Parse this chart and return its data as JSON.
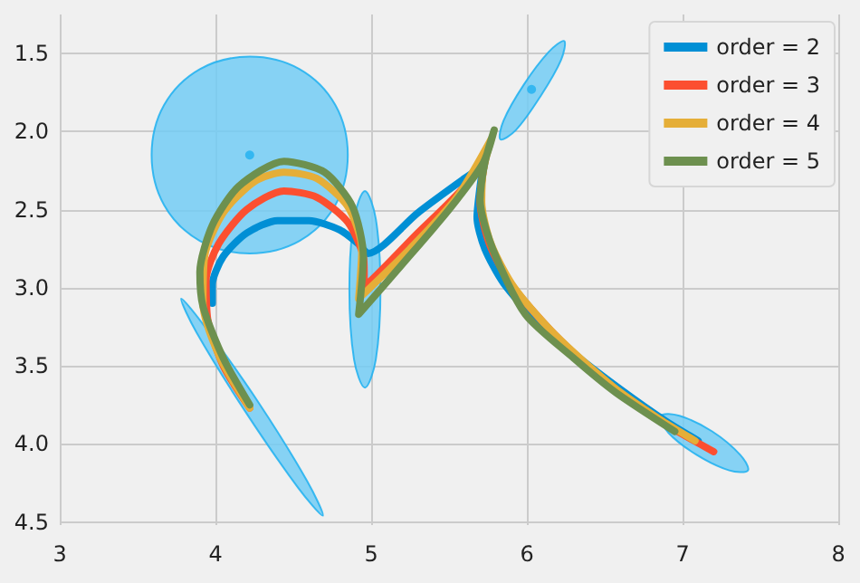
{
  "chart_data": {
    "type": "line",
    "xlim": [
      3,
      8
    ],
    "ylim": [
      4.52,
      1.25
    ],
    "xticks": [
      3,
      4,
      5,
      6,
      7,
      8
    ],
    "yticks": [
      {
        "value": 1.5,
        "label": "1.5"
      },
      {
        "value": 2,
        "label": "2.0"
      },
      {
        "value": 2.5,
        "label": "2.5"
      },
      {
        "value": 3,
        "label": "3.0"
      },
      {
        "value": 3.5,
        "label": "3.5"
      },
      {
        "value": 4,
        "label": "4.0"
      },
      {
        "value": 4.5,
        "label": "4.5"
      }
    ],
    "grid": true,
    "legend": "top right",
    "line_style": "solid",
    "marker": "none",
    "series": [
      {
        "type": "area",
        "color": "#73cdf5",
        "x": [
          4.85,
          4.77,
          4.54,
          4.22,
          3.9,
          3.67,
          3.59,
          3.67,
          3.9,
          4.22,
          4.54,
          4.77
        ],
        "values": [
          2.15,
          2.47,
          2.7,
          2.78,
          2.7,
          2.47,
          2.15,
          1.83,
          1.6,
          1.52,
          1.6,
          1.83
        ]
      },
      {
        "type": "area",
        "color": "#73cdf5",
        "x": [
          4.96,
          5.03,
          5.06,
          5.03,
          4.96,
          4.89,
          4.86,
          4.89
        ],
        "values": [
          3.64,
          3.46,
          3.01,
          2.56,
          2.38,
          2.56,
          3.01,
          3.46
        ]
      },
      {
        "type": "area",
        "color": "#73cdf5",
        "x": [
          4.69,
          4.59,
          4.28,
          3.94,
          3.78,
          3.88,
          4.19,
          4.53
        ],
        "values": [
          4.46,
          4.24,
          3.74,
          3.26,
          3.07,
          3.29,
          3.79,
          4.28
        ]
      },
      {
        "type": "area",
        "color": "#73cdf5",
        "x": [
          6.24,
          6.22,
          6.09,
          5.93,
          5.83,
          5.85,
          5.98,
          6.14
        ],
        "values": [
          1.42,
          1.54,
          1.77,
          1.99,
          2.05,
          1.93,
          1.7,
          1.49
        ]
      },
      {
        "type": "area",
        "color": "#73cdf5",
        "x": [
          7.42,
          7.37,
          7.19,
          6.98,
          6.86,
          6.91,
          7.09,
          7.3
        ],
        "values": [
          4.17,
          4.07,
          3.92,
          3.82,
          3.82,
          3.93,
          4.07,
          4.17
        ]
      },
      {
        "type": "scatter",
        "marker": "circle",
        "color": "#1fb0f0",
        "x": [
          4.22,
          6.03
        ],
        "values": [
          2.15,
          1.73
        ]
      },
      {
        "name": "order = 2",
        "color": "#008fd5",
        "x": [
          3.98,
          3.98,
          4.05,
          4.2,
          4.4,
          4.6,
          4.8,
          4.92,
          4.98,
          5.3,
          5.6,
          5.72,
          5.7,
          5.68,
          5.73,
          5.85,
          6.05,
          6.3,
          6.6,
          6.9,
          7.1
        ],
        "values": [
          3.1,
          2.98,
          2.8,
          2.65,
          2.57,
          2.57,
          2.63,
          2.72,
          2.78,
          2.52,
          2.3,
          2.22,
          2.35,
          2.55,
          2.75,
          2.97,
          3.2,
          3.42,
          3.65,
          3.86,
          3.98
        ]
      },
      {
        "name": "order = 3",
        "color": "#fc4f30",
        "x": [
          4.22,
          4.05,
          3.95,
          3.94,
          4.02,
          4.2,
          4.44,
          4.65,
          4.85,
          4.95,
          4.96,
          5.3,
          5.6,
          5.75,
          5.72,
          5.7,
          5.76,
          5.9,
          6.15,
          6.5,
          6.85,
          7.2
        ],
        "values": [
          3.77,
          3.5,
          3.2,
          2.95,
          2.72,
          2.5,
          2.38,
          2.42,
          2.58,
          2.8,
          2.98,
          2.65,
          2.35,
          2.1,
          2.25,
          2.45,
          2.72,
          2.98,
          3.27,
          3.6,
          3.85,
          4.05
        ]
      },
      {
        "name": "order = 4",
        "color": "#e5ae38",
        "x": [
          4.22,
          4.03,
          3.92,
          3.93,
          4.05,
          4.25,
          4.44,
          4.65,
          4.85,
          4.94,
          4.92,
          5.25,
          5.55,
          5.77,
          5.72,
          5.71,
          5.77,
          5.92,
          6.18,
          6.55,
          6.85,
          7.08
        ],
        "values": [
          3.77,
          3.45,
          3.1,
          2.8,
          2.52,
          2.32,
          2.26,
          2.3,
          2.48,
          2.75,
          3.07,
          2.75,
          2.42,
          2.05,
          2.25,
          2.45,
          2.72,
          3.0,
          3.3,
          3.63,
          3.84,
          3.98
        ]
      },
      {
        "name": "order = 5",
        "color": "#6d904f",
        "x": [
          4.22,
          4.05,
          3.92,
          3.9,
          3.98,
          4.15,
          4.44,
          4.7,
          4.88,
          4.95,
          4.92,
          5.2,
          5.5,
          5.72,
          5.79,
          5.73,
          5.7,
          5.78,
          5.99,
          6.3,
          6.57,
          6.95
        ],
        "values": [
          3.75,
          3.45,
          3.12,
          2.9,
          2.6,
          2.35,
          2.19,
          2.26,
          2.48,
          2.8,
          3.17,
          2.85,
          2.5,
          2.2,
          1.99,
          2.2,
          2.44,
          2.75,
          3.17,
          3.45,
          3.67,
          3.92
        ]
      }
    ]
  }
}
